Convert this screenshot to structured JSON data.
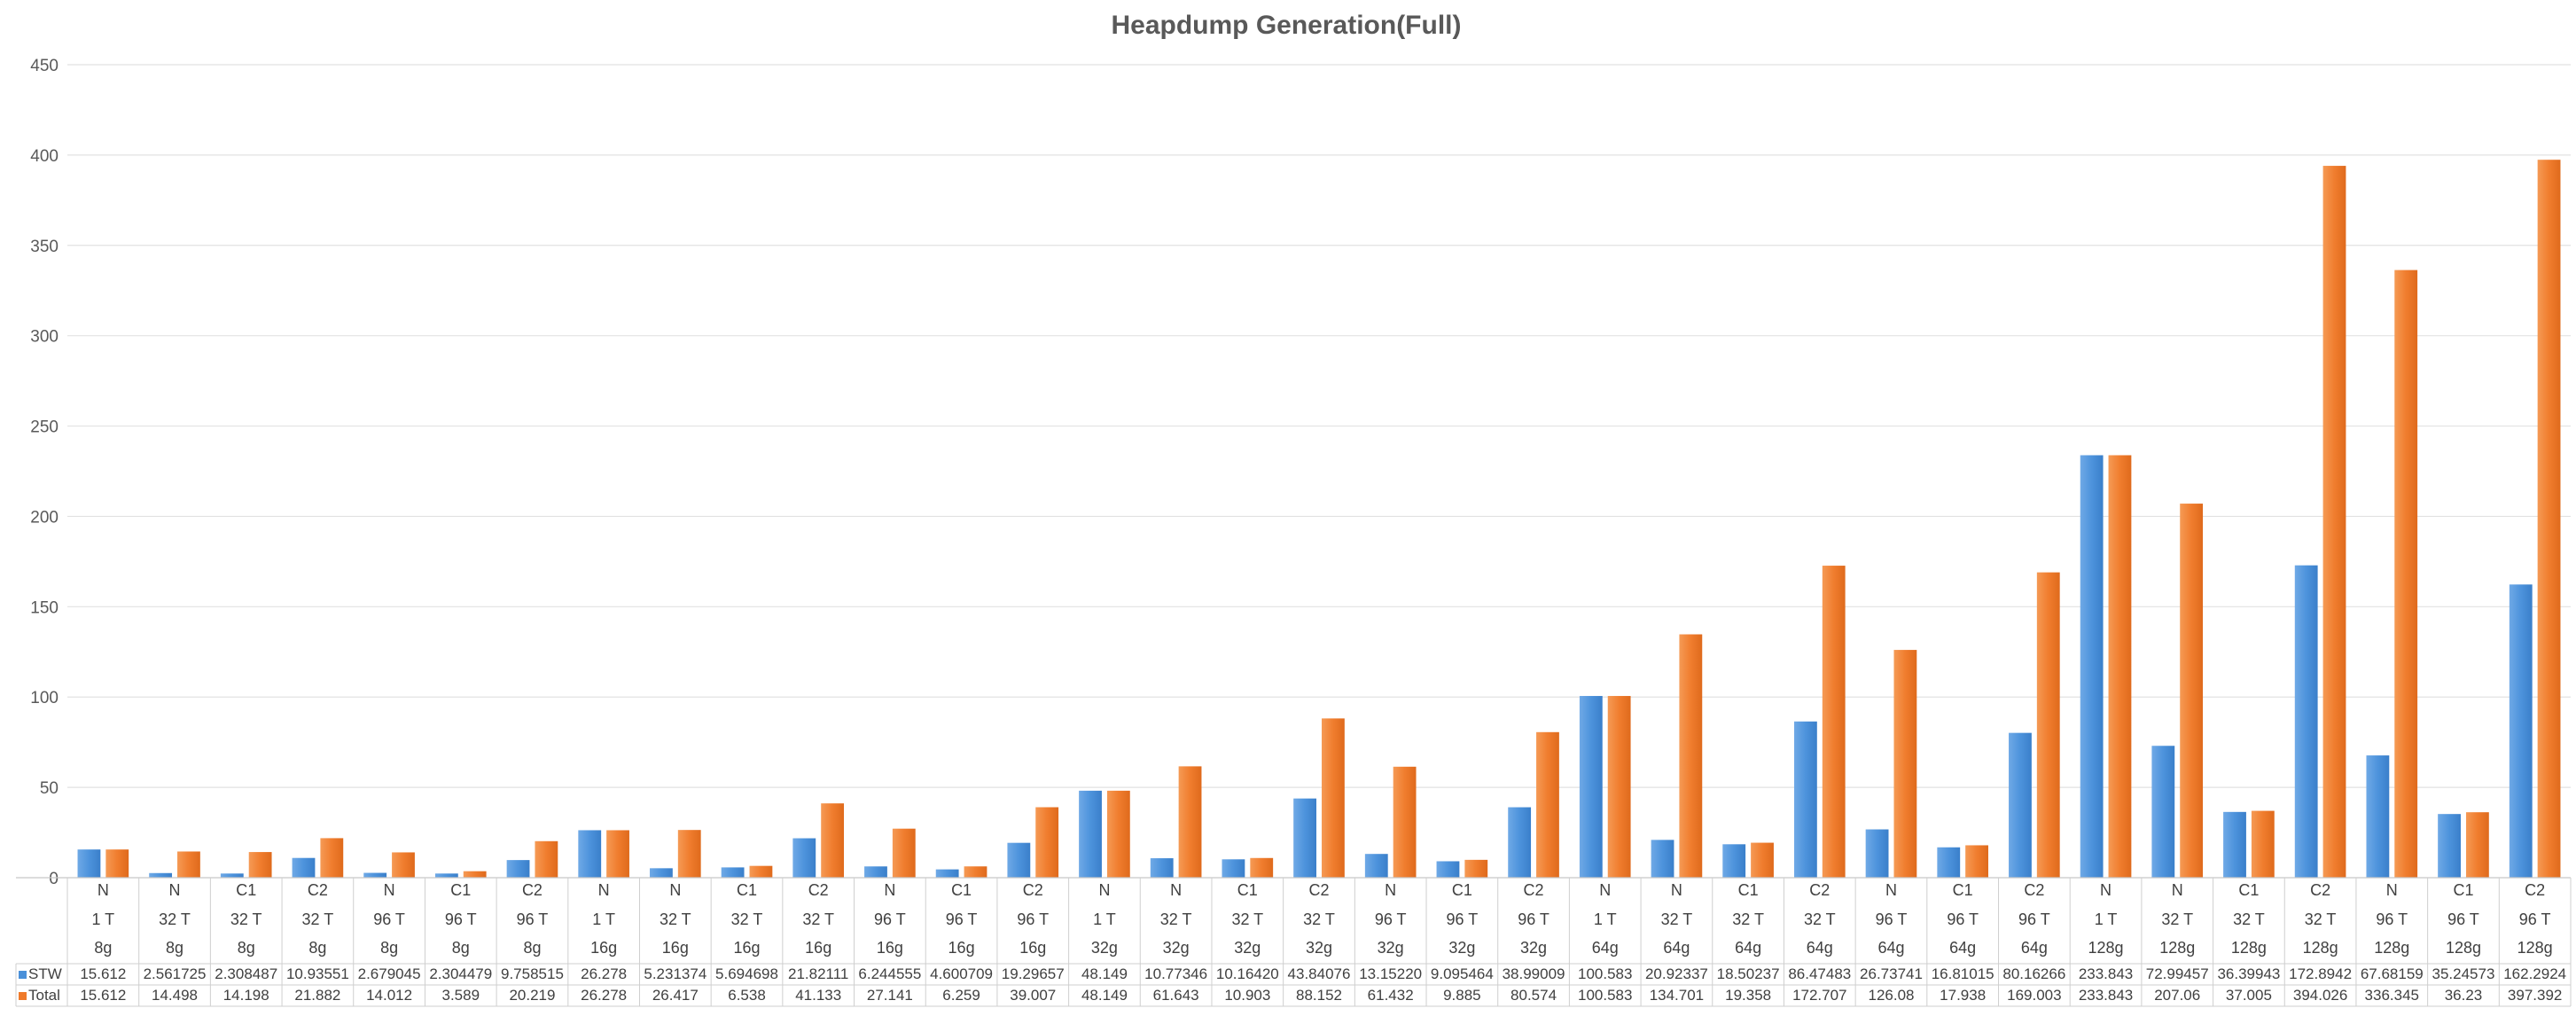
{
  "chart_data": {
    "type": "bar",
    "title": "Heapdump Generation(Full)",
    "ylim": [
      0,
      450
    ],
    "yticks": [
      "0",
      "50",
      "100",
      "150",
      "200",
      "250",
      "300",
      "350",
      "400",
      "450"
    ],
    "grid": true,
    "legend_position": "table-left",
    "colors": {
      "STW": "#4a90d9",
      "Total": "#ef7a2a"
    },
    "categories": [
      [
        "N",
        "1 T",
        "8g"
      ],
      [
        "N",
        "32 T",
        "8g"
      ],
      [
        "C1",
        "32 T",
        "8g"
      ],
      [
        "C2",
        "32 T",
        "8g"
      ],
      [
        "N",
        "96 T",
        "8g"
      ],
      [
        "C1",
        "96 T",
        "8g"
      ],
      [
        "C2",
        "96 T",
        "8g"
      ],
      [
        "N",
        "1 T",
        "16g"
      ],
      [
        "N",
        "32 T",
        "16g"
      ],
      [
        "C1",
        "32 T",
        "16g"
      ],
      [
        "C2",
        "32 T",
        "16g"
      ],
      [
        "N",
        "96 T",
        "16g"
      ],
      [
        "C1",
        "96 T",
        "16g"
      ],
      [
        "C2",
        "96 T",
        "16g"
      ],
      [
        "N",
        "1 T",
        "32g"
      ],
      [
        "N",
        "32 T",
        "32g"
      ],
      [
        "C1",
        "32 T",
        "32g"
      ],
      [
        "C2",
        "32 T",
        "32g"
      ],
      [
        "N",
        "96 T",
        "32g"
      ],
      [
        "C1",
        "96 T",
        "32g"
      ],
      [
        "C2",
        "96 T",
        "32g"
      ],
      [
        "N",
        "1 T",
        "64g"
      ],
      [
        "N",
        "32 T",
        "64g"
      ],
      [
        "C1",
        "32 T",
        "64g"
      ],
      [
        "C2",
        "32 T",
        "64g"
      ],
      [
        "N",
        "96 T",
        "64g"
      ],
      [
        "C1",
        "96 T",
        "64g"
      ],
      [
        "C2",
        "96 T",
        "64g"
      ],
      [
        "N",
        "1 T",
        "128g"
      ],
      [
        "N",
        "32 T",
        "128g"
      ],
      [
        "C1",
        "32 T",
        "128g"
      ],
      [
        "C2",
        "32 T",
        "128g"
      ],
      [
        "N",
        "96 T",
        "128g"
      ],
      [
        "C1",
        "96 T",
        "128g"
      ],
      [
        "C2",
        "96 T",
        "128g"
      ]
    ],
    "series": [
      {
        "name": "STW",
        "labels": [
          "15.612",
          "2.561725",
          "2.308487",
          "10.93551",
          "2.679045",
          "2.304479",
          "9.758515",
          "26.278",
          "5.231374",
          "5.694698",
          "21.82111",
          "6.244555",
          "4.600709",
          "19.29657",
          "48.149",
          "10.77346",
          "10.16420",
          "43.84076",
          "13.15220",
          "9.095464",
          "38.99009",
          "100.583",
          "20.92337",
          "18.50237",
          "86.47483",
          "26.73741",
          "16.81015",
          "80.16266",
          "233.843",
          "72.99457",
          "36.39943",
          "172.8942",
          "67.68159",
          "35.24573",
          "162.2924"
        ],
        "values": [
          15.612,
          2.561725,
          2.308487,
          10.93551,
          2.679045,
          2.304479,
          9.758515,
          26.278,
          5.231374,
          5.694698,
          21.82111,
          6.244555,
          4.600709,
          19.29657,
          48.149,
          10.77346,
          10.1642,
          43.84076,
          13.1522,
          9.095464,
          38.99009,
          100.583,
          20.92337,
          18.50237,
          86.47483,
          26.73741,
          16.81015,
          80.16266,
          233.843,
          72.99457,
          36.39943,
          172.8942,
          67.68159,
          35.24573,
          162.2924
        ]
      },
      {
        "name": "Total",
        "labels": [
          "15.612",
          "14.498",
          "14.198",
          "21.882",
          "14.012",
          "3.589",
          "20.219",
          "26.278",
          "26.417",
          "6.538",
          "41.133",
          "27.141",
          "6.259",
          "39.007",
          "48.149",
          "61.643",
          "10.903",
          "88.152",
          "61.432",
          "9.885",
          "80.574",
          "100.583",
          "134.701",
          "19.358",
          "172.707",
          "126.08",
          "17.938",
          "169.003",
          "233.843",
          "207.06",
          "37.005",
          "394.026",
          "336.345",
          "36.23",
          "397.392"
        ],
        "values": [
          15.612,
          14.498,
          14.198,
          21.882,
          14.012,
          3.589,
          20.219,
          26.278,
          26.417,
          6.538,
          41.133,
          27.141,
          6.259,
          39.007,
          48.149,
          61.643,
          10.903,
          88.152,
          61.432,
          9.885,
          80.574,
          100.583,
          134.701,
          19.358,
          172.707,
          126.08,
          17.938,
          169.003,
          233.843,
          207.06,
          37.005,
          394.026,
          336.345,
          36.23,
          397.392
        ]
      }
    ]
  }
}
